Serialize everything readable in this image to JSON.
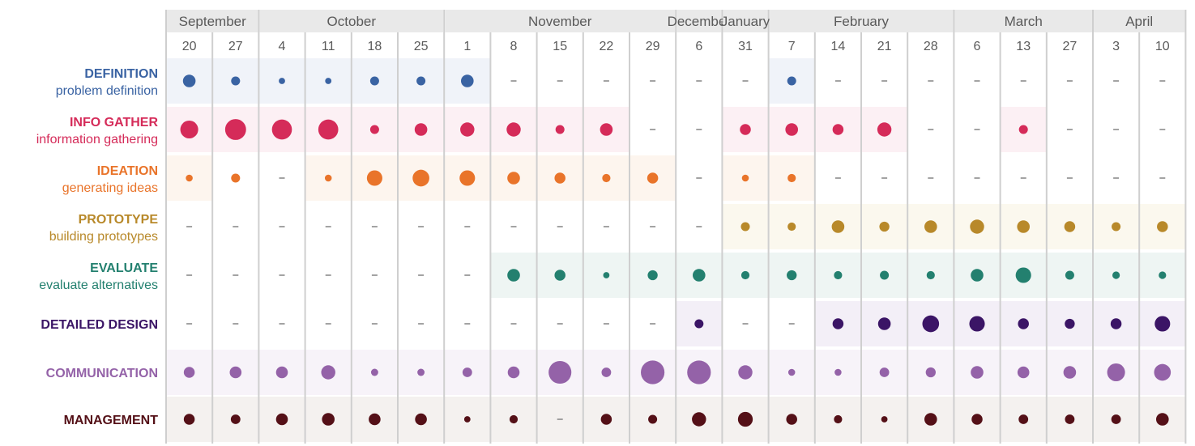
{
  "chart_data": {
    "type": "bubble-timeline",
    "months": [
      {
        "name": "September",
        "span": [
          0,
          1
        ]
      },
      {
        "name": "October",
        "span": [
          2,
          5
        ]
      },
      {
        "name": "November",
        "span": [
          6,
          10
        ]
      },
      {
        "name": "December",
        "span": [
          11,
          11
        ]
      },
      {
        "name": "January",
        "span": [
          12,
          12
        ]
      },
      {
        "name": "February",
        "span": [
          13,
          16
        ]
      },
      {
        "name": "March",
        "span": [
          17,
          19
        ]
      },
      {
        "name": "April",
        "span": [
          20,
          21
        ]
      }
    ],
    "weeks": [
      "20",
      "27",
      "4",
      "11",
      "18",
      "25",
      "1",
      "8",
      "15",
      "22",
      "29",
      "6",
      "31",
      "7",
      "14",
      "21",
      "28",
      "6",
      "13",
      "27",
      "3",
      "10"
    ],
    "rows": [
      {
        "name": "DEFINITION",
        "sub": "problem definition",
        "color": "#3a63a3",
        "bg": "#f0f3f9",
        "shaded": [
          [
            0,
            6
          ],
          [
            13,
            13
          ]
        ],
        "values": [
          4,
          2,
          1,
          1,
          2,
          2,
          4,
          0,
          0,
          0,
          0,
          0,
          0,
          2,
          0,
          0,
          0,
          0,
          0,
          0,
          0,
          0
        ]
      },
      {
        "name": "INFO GATHER",
        "sub": "information gathering",
        "color": "#d52b59",
        "bg": "#fcf0f4",
        "shaded": [
          [
            0,
            9
          ],
          [
            12,
            15
          ],
          [
            18,
            18
          ]
        ],
        "values": [
          8,
          11,
          10,
          10,
          2,
          4,
          5,
          5,
          2,
          4,
          0,
          0,
          3,
          4,
          3,
          5,
          0,
          0,
          2,
          0,
          0,
          0
        ]
      },
      {
        "name": "IDEATION",
        "sub": "generating ideas",
        "color": "#e9742a",
        "bg": "#fdf5ee",
        "shaded": [
          [
            0,
            0
          ],
          [
            3,
            10
          ],
          [
            12,
            13
          ]
        ],
        "values": [
          1.2,
          2,
          0,
          1.2,
          6,
          7,
          6,
          4,
          3,
          1.7,
          3,
          0,
          1.2,
          1.7,
          0,
          0,
          0,
          0,
          0,
          0,
          0,
          0
        ]
      },
      {
        "name": "PROTOTYPE",
        "sub": "building prototypes",
        "color": "#b8892a",
        "bg": "#fbf8ee",
        "shaded": [
          [
            12,
            21
          ]
        ],
        "values": [
          0,
          0,
          0,
          0,
          0,
          0,
          0,
          0,
          0,
          0,
          0,
          0,
          2,
          1.7,
          4,
          2.5,
          4,
          5,
          4,
          3,
          2,
          3
        ]
      },
      {
        "name": "EVALUATE",
        "sub": "evaluate alternatives",
        "color": "#23806f",
        "bg": "#eef5f3",
        "shaded": [
          [
            7,
            21
          ]
        ],
        "values": [
          0,
          0,
          0,
          0,
          0,
          0,
          0,
          4,
          3,
          1,
          2.5,
          4,
          1.7,
          2.5,
          1.7,
          2,
          1.7,
          4,
          6,
          2,
          1.4,
          1.4
        ]
      },
      {
        "name": "DETAILED DESIGN",
        "sub": "",
        "color": "#3b1566",
        "bg": "#f3eff7",
        "shaded": [
          [
            11,
            11
          ],
          [
            14,
            21
          ]
        ],
        "values": [
          0,
          0,
          0,
          0,
          0,
          0,
          0,
          0,
          0,
          0,
          0,
          2,
          0,
          0,
          3,
          4,
          7,
          6,
          3,
          2.5,
          3,
          6
        ]
      },
      {
        "name": "COMMUNICATION",
        "sub": "",
        "color": "#9462a8",
        "bg": "#f7f3f9",
        "shaded": [
          [
            0,
            21
          ]
        ],
        "values": [
          3,
          3.5,
          3.5,
          5,
          1.3,
          1.3,
          2.3,
          3.5,
          13,
          2.3,
          14,
          14,
          5,
          1.2,
          1.2,
          2.3,
          2.5,
          4,
          3.5,
          4,
          8,
          7
        ]
      },
      {
        "name": "MANAGEMENT",
        "sub": "",
        "color": "#541017",
        "bg": "#f4f1ef",
        "shaded": [
          [
            0,
            21
          ]
        ],
        "values": [
          3,
          2.3,
          3.5,
          4,
          3.5,
          3.5,
          1,
          1.7,
          0,
          3,
          2,
          5,
          5.5,
          3,
          1.7,
          1,
          4,
          3,
          2.3,
          2.3,
          2.3,
          4
        ]
      }
    ]
  }
}
